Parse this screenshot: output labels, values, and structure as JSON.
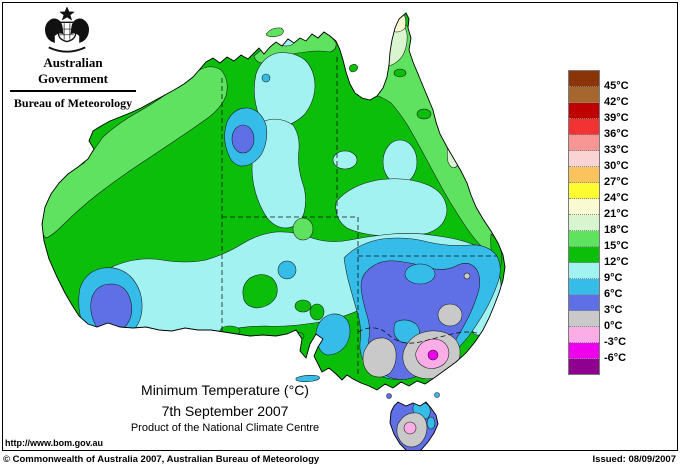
{
  "header": {
    "government": "Australian Government",
    "bureau": "Bureau of Meteorology"
  },
  "titles": {
    "main": "Minimum Temperature (°C)",
    "date": "7th September 2007",
    "product": "Product of the National Climate Centre"
  },
  "url": "http://www.bom.gov.au",
  "footer": {
    "copyright": "© Commonwealth of Australia 2007, Australian Bureau of Meteorology",
    "issued": "Issued: 08/09/2007"
  },
  "legend": {
    "unit": "°C",
    "labels": [
      "45°C",
      "42°C",
      "39°C",
      "36°C",
      "33°C",
      "30°C",
      "27°C",
      "24°C",
      "21°C",
      "18°C",
      "15°C",
      "12°C",
      "9°C",
      "6°C",
      "3°C",
      "0°C",
      "-3°C",
      "-6°C"
    ],
    "colors": [
      "#8A3408",
      "#A5672D",
      "#BE0000",
      "#F23333",
      "#F89696",
      "#FAD4D4",
      "#FAC35E",
      "#FCFC30",
      "#FAFAD2",
      "#D8F5D0",
      "#5FE25F",
      "#0ABE0A",
      "#A3F2F2",
      "#35BCE8",
      "#5F6FE6",
      "#C9C9C9",
      "#FCADE8",
      "#EE00EE",
      "#8F0090"
    ],
    "bands": [
      "above 45",
      "42-45",
      "39-42",
      "36-39",
      "33-36",
      "30-33",
      "27-30",
      "24-27",
      "21-24",
      "18-21",
      "15-18",
      "12-15",
      "9-12",
      "6-9",
      "3-6",
      "0-3",
      "-3-0",
      "-6--3",
      "below -6"
    ]
  },
  "map": {
    "region": "Australia",
    "kind": "minimum temperature filled contour analysis"
  }
}
